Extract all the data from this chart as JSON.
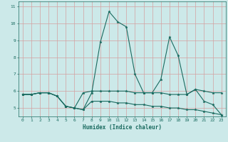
{
  "xlabel": "Humidex (Indice chaleur)",
  "xlim": [
    -0.5,
    23.5
  ],
  "ylim": [
    4.5,
    11.3
  ],
  "xticks": [
    0,
    1,
    2,
    3,
    4,
    5,
    6,
    7,
    8,
    9,
    10,
    11,
    12,
    13,
    14,
    15,
    16,
    17,
    18,
    19,
    20,
    21,
    22,
    23
  ],
  "yticks": [
    5,
    6,
    7,
    8,
    9,
    10,
    11
  ],
  "bg_color": "#cce9e9",
  "line_color": "#1a6b60",
  "grid_color": "#d4a0a0",
  "series1_x": [
    0,
    1,
    2,
    3,
    4,
    5,
    6,
    7,
    8,
    9,
    10,
    11,
    12,
    13,
    14,
    15,
    16,
    17,
    18,
    19,
    20,
    21,
    22,
    23
  ],
  "series1_y": [
    5.8,
    5.8,
    5.9,
    5.9,
    5.7,
    5.1,
    5.0,
    4.9,
    5.9,
    8.9,
    10.7,
    10.1,
    9.8,
    7.0,
    5.9,
    5.9,
    6.7,
    9.2,
    8.1,
    5.8,
    6.1,
    5.4,
    5.2,
    4.6
  ],
  "series2_x": [
    0,
    1,
    2,
    3,
    4,
    5,
    6,
    7,
    8,
    9,
    10,
    11,
    12,
    13,
    14,
    15,
    16,
    17,
    18,
    19,
    20,
    21,
    22,
    23
  ],
  "series2_y": [
    5.8,
    5.8,
    5.9,
    5.9,
    5.7,
    5.1,
    5.0,
    4.9,
    5.4,
    5.4,
    5.4,
    5.3,
    5.3,
    5.2,
    5.2,
    5.1,
    5.1,
    5.0,
    5.0,
    4.9,
    4.9,
    4.8,
    4.7,
    4.6
  ],
  "series3_x": [
    0,
    1,
    2,
    3,
    4,
    5,
    6,
    7,
    8,
    9,
    10,
    11,
    12,
    13,
    14,
    15,
    16,
    17,
    18,
    19,
    20,
    21,
    22,
    23
  ],
  "series3_y": [
    5.8,
    5.8,
    5.9,
    5.9,
    5.7,
    5.1,
    5.0,
    5.9,
    6.0,
    6.0,
    6.0,
    6.0,
    6.0,
    5.9,
    5.9,
    5.9,
    5.9,
    5.8,
    5.8,
    5.8,
    6.1,
    6.0,
    5.9,
    5.9
  ]
}
